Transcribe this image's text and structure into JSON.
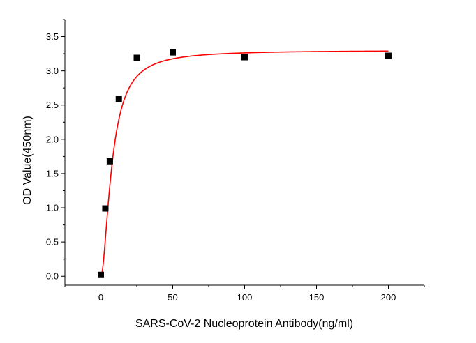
{
  "chart_data": {
    "type": "scatter",
    "xlabel": "SARS-CoV-2 Nucleoprotein Antibody(ng/ml)",
    "ylabel": "OD Value(450nm)",
    "xlim": [
      -25,
      225
    ],
    "ylim": [
      -0.13,
      3.75
    ],
    "x_ticks": [
      {
        "value": 0,
        "label": "0"
      },
      {
        "value": 50,
        "label": "50"
      },
      {
        "value": 100,
        "label": "100"
      },
      {
        "value": 150,
        "label": "150"
      },
      {
        "value": 200,
        "label": "200"
      }
    ],
    "y_ticks": [
      {
        "value": 0.0,
        "label": "0.0"
      },
      {
        "value": 0.5,
        "label": "0.5"
      },
      {
        "value": 1.0,
        "label": "1.0"
      },
      {
        "value": 1.5,
        "label": "1.5"
      },
      {
        "value": 2.0,
        "label": "2.0"
      },
      {
        "value": 2.5,
        "label": "2.5"
      },
      {
        "value": 3.0,
        "label": "3.0"
      },
      {
        "value": 3.5,
        "label": "3.5"
      }
    ],
    "x_minor_step": 25,
    "y_minor_step": 0.25,
    "grid": false,
    "legend": "none",
    "series": [
      {
        "marker": "square",
        "color": "#000000",
        "x": [
          0,
          3.125,
          6.25,
          12.5,
          25,
          50,
          100,
          200
        ],
        "y": [
          0.02,
          0.99,
          1.68,
          2.59,
          3.19,
          3.27,
          3.2,
          3.22
        ]
      }
    ],
    "fit": {
      "color": "#ff0000",
      "model": "four-parameter logistic",
      "bottom": -0.02,
      "top": 3.3,
      "ec50": 7.8,
      "hill": 1.75,
      "x_range": [
        0,
        200
      ]
    }
  }
}
